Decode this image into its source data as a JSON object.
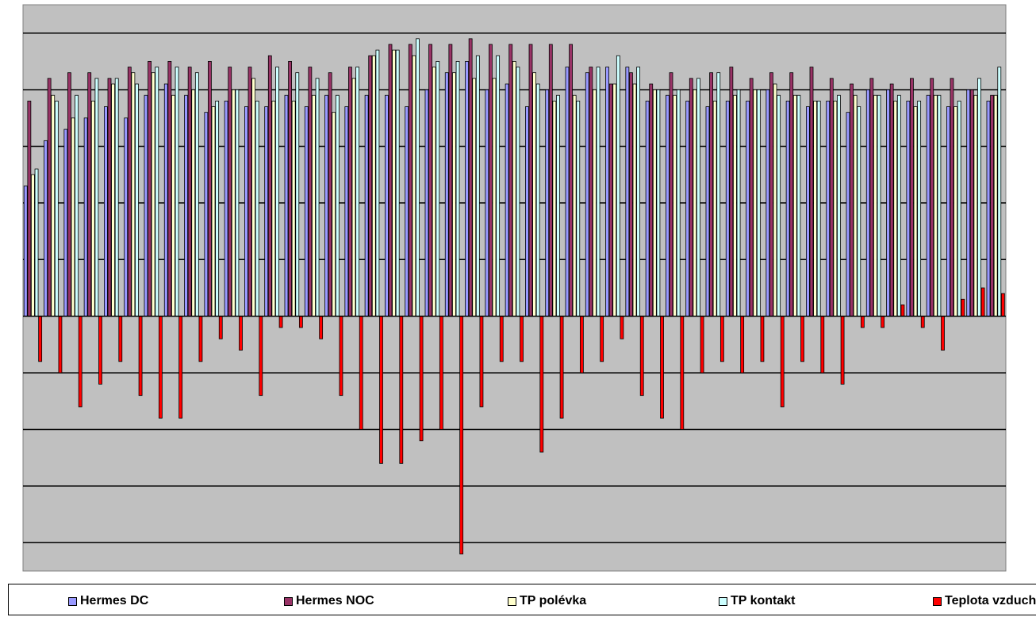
{
  "chart_data": {
    "type": "bar",
    "title": "",
    "xlabel": "",
    "ylabel": "",
    "grid": true,
    "legend_position": "bottom",
    "plot_background": "#C0C0C0",
    "ylim": [
      -4.5,
      5.5
    ],
    "series": [
      {
        "name": "Hermes DC",
        "color": "#9999FF",
        "values": [
          2.3,
          3.1,
          3.3,
          3.5,
          3.7,
          3.5,
          3.9,
          4.1,
          3.9,
          3.6,
          3.8,
          3.7,
          3.7,
          3.9,
          3.7,
          3.9,
          3.7,
          3.9,
          3.9,
          3.7,
          4.0,
          4.3,
          4.5,
          4.0,
          4.1,
          3.7,
          4.0,
          4.4,
          4.3,
          4.4,
          4.4,
          3.8,
          3.9,
          3.8,
          3.7,
          3.8,
          3.8,
          4.0,
          3.8,
          3.7,
          3.8,
          3.6,
          4.0,
          4.0,
          3.8,
          3.9,
          3.7,
          4.0,
          3.8
        ]
      },
      {
        "name": "Hermes NOC",
        "color": "#993366",
        "values": [
          3.8,
          4.2,
          4.3,
          4.3,
          4.2,
          4.4,
          4.5,
          4.5,
          4.4,
          4.5,
          4.4,
          4.4,
          4.6,
          4.5,
          4.4,
          4.3,
          4.4,
          4.6,
          4.8,
          4.8,
          4.8,
          4.8,
          4.9,
          4.8,
          4.8,
          4.8,
          4.8,
          4.8,
          4.4,
          4.1,
          4.3,
          4.1,
          4.3,
          4.2,
          4.3,
          4.4,
          4.2,
          4.3,
          4.3,
          4.4,
          4.2,
          4.1,
          4.2,
          4.1,
          4.2,
          4.2,
          4.2,
          4.0,
          3.9
        ]
      },
      {
        "name": "TP polévka",
        "color": "#FFFFCC",
        "values": [
          2.5,
          3.9,
          3.5,
          3.8,
          4.1,
          4.3,
          4.3,
          3.9,
          4.0,
          3.7,
          4.0,
          4.2,
          3.8,
          3.8,
          3.9,
          3.6,
          4.2,
          4.6,
          4.7,
          4.6,
          4.4,
          4.3,
          4.2,
          4.2,
          4.5,
          4.3,
          3.8,
          3.9,
          4.0,
          4.1,
          4.1,
          4.0,
          3.9,
          4.0,
          3.8,
          3.9,
          4.0,
          4.1,
          3.9,
          3.8,
          3.8,
          3.9,
          3.9,
          3.8,
          3.7,
          3.9,
          3.7,
          3.9,
          3.9
        ]
      },
      {
        "name": "TP kontakt",
        "color": "#CCFFFF",
        "values": [
          2.6,
          3.8,
          3.9,
          4.2,
          4.2,
          4.1,
          4.4,
          4.4,
          4.3,
          3.8,
          4.0,
          3.8,
          4.4,
          4.3,
          4.2,
          3.9,
          4.4,
          4.7,
          4.7,
          4.9,
          4.5,
          4.5,
          4.6,
          4.6,
          4.4,
          4.1,
          3.9,
          3.8,
          4.4,
          4.6,
          4.4,
          4.0,
          4.0,
          4.2,
          4.3,
          4.0,
          4.0,
          3.9,
          3.9,
          3.8,
          3.9,
          3.7,
          3.9,
          3.9,
          3.8,
          3.9,
          3.8,
          4.2,
          4.4
        ]
      },
      {
        "name": "Teplota vzduchu",
        "color": "#FF0000",
        "values": [
          -0.8,
          -1.0,
          -1.6,
          -1.2,
          -0.8,
          -1.4,
          -1.8,
          -1.8,
          -0.8,
          -0.4,
          -0.6,
          -1.4,
          -0.2,
          -0.2,
          -0.4,
          -1.4,
          -2.0,
          -2.6,
          -2.6,
          -2.2,
          -2.0,
          -4.2,
          -1.6,
          -0.8,
          -0.8,
          -2.4,
          -1.8,
          -1.0,
          -0.8,
          -0.4,
          -1.4,
          -1.8,
          -2.0,
          -1.0,
          -0.8,
          -1.0,
          -0.8,
          -1.6,
          -0.8,
          -1.0,
          -1.2,
          -0.2,
          -0.2,
          0.2,
          -0.2,
          -0.6,
          0.3,
          0.5,
          0.4
        ]
      }
    ]
  },
  "legend": [
    {
      "label": "Hermes DC",
      "color": "#9999FF"
    },
    {
      "label": "Hermes NOC",
      "color": "#993366"
    },
    {
      "label": "TP polévka",
      "color": "#FFFFCC"
    },
    {
      "label": "TP kontakt",
      "color": "#CCFFFF"
    },
    {
      "label": "Teplota vzduchu",
      "color": "#FF0000"
    }
  ]
}
